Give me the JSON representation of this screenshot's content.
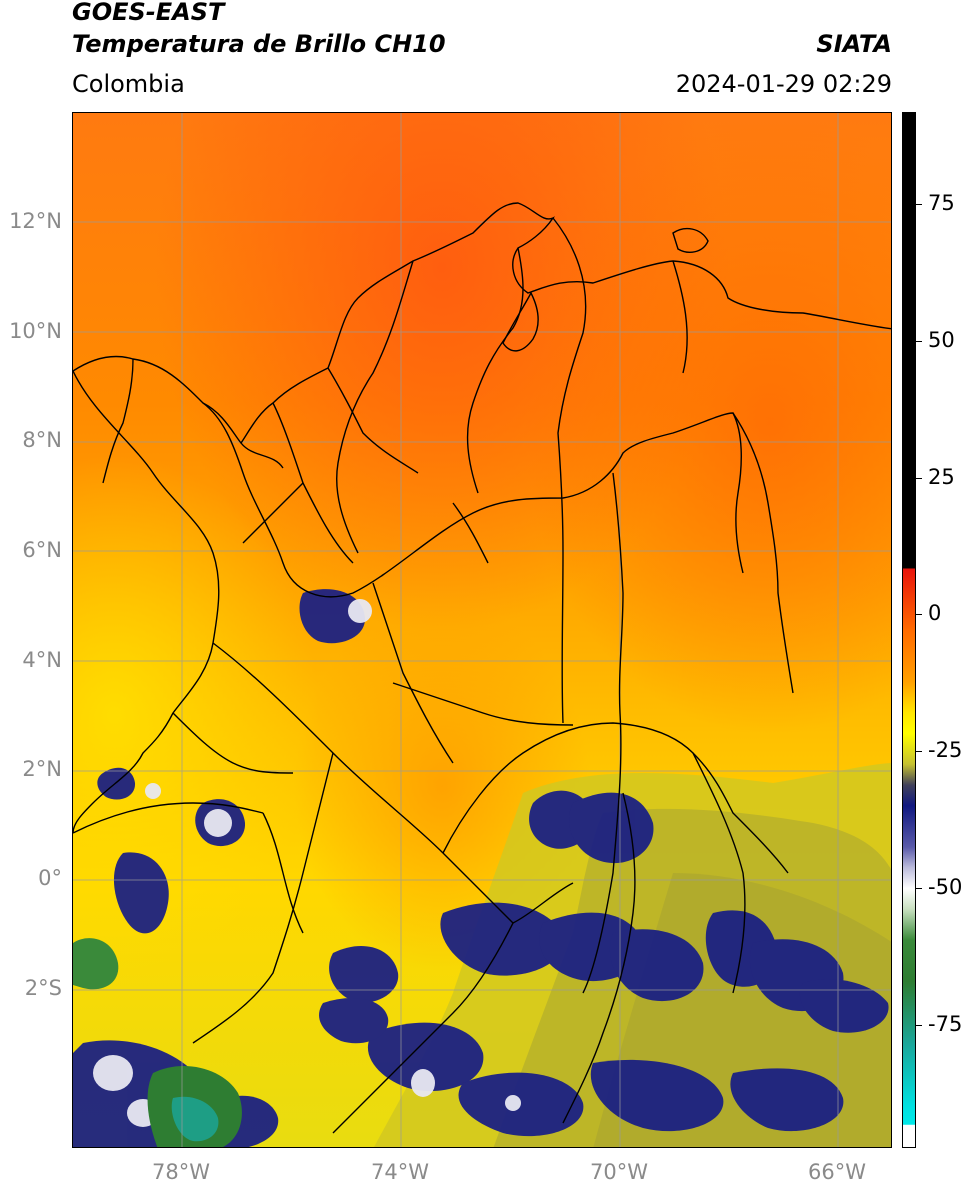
{
  "header": {
    "satellite": "GOES-EAST",
    "product": "Temperatura de Brillo CH10",
    "agency": "SIATA",
    "region": "Colombia",
    "datetime": "2024-01-29 02:29"
  },
  "map": {
    "lat_labels": [
      "12°N",
      "10°N",
      "8°N",
      "6°N",
      "4°N",
      "2°N",
      "0°",
      "2°S"
    ],
    "lon_labels": [
      "78°W",
      "74°W",
      "70°W",
      "66°W"
    ],
    "extent": {
      "lon_min": -80,
      "lon_max": -65,
      "lat_min": -4.9,
      "lat_max": 14
    }
  },
  "colorbar": {
    "tick_labels": [
      "75",
      "50",
      "25",
      "0",
      "-25",
      "-50",
      "-75"
    ],
    "colors": {
      "black": "#000000",
      "red": "#e8140c",
      "orange": "#ff8c00",
      "yellow": "#ffe600",
      "olive": "#b4b428",
      "navy": "#101880",
      "white": "#ffffff",
      "green": "#2e7d32",
      "teal": "#1aa69a",
      "cyan": "#00e0e0"
    }
  }
}
